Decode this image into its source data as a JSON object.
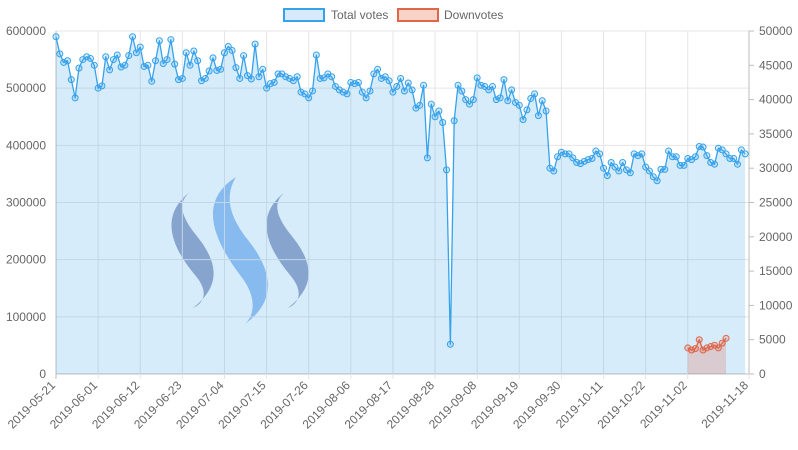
{
  "chart_data": {
    "type": "line",
    "legend": {
      "placement": "top-center",
      "items": [
        {
          "label": "Total votes",
          "stroke": "#36a2eb",
          "fill": "#d7eafb"
        },
        {
          "label": "Downvotes",
          "stroke": "#e0664a",
          "fill": "#f9d2c8"
        }
      ]
    },
    "x_ticks": [
      "2019-05-21",
      "2019-06-01",
      "2019-06-12",
      "2019-06-23",
      "2019-07-04",
      "2019-07-15",
      "2019-07-26",
      "2019-08-06",
      "2019-08-17",
      "2019-08-28",
      "2019-09-08",
      "2019-09-19",
      "2019-09-30",
      "2019-10-11",
      "2019-10-22",
      "2019-11-02",
      "2019-11-18"
    ],
    "x_tick_day_index": [
      0,
      11,
      22,
      33,
      44,
      55,
      66,
      77,
      88,
      99,
      110,
      121,
      132,
      143,
      154,
      165,
      181
    ],
    "x_start": "2019-05-21",
    "x_end": "2019-11-18",
    "y_left": {
      "min": 0,
      "max": 600000,
      "ticks": [
        "0",
        "100000",
        "200000",
        "300000",
        "400000",
        "500000",
        "600000"
      ]
    },
    "y_right": {
      "min": 0,
      "max": 50000,
      "ticks": [
        "0",
        "5000",
        "10000",
        "15000",
        "20000",
        "25000",
        "30000",
        "35000",
        "40000",
        "45000",
        "50000"
      ]
    },
    "grid": true,
    "series": [
      {
        "name": "Total votes",
        "axis": "left",
        "color": "#36a2eb",
        "fill": "rgba(54,162,235,0.2)",
        "values": [
          590000,
          560000,
          545000,
          548000,
          515000,
          483000,
          535000,
          550000,
          555000,
          552000,
          540000,
          500000,
          504000,
          555000,
          532000,
          550000,
          558000,
          537000,
          540000,
          557000,
          590000,
          562000,
          572000,
          538000,
          540000,
          512000,
          548000,
          583000,
          543000,
          550000,
          585000,
          542000,
          515000,
          517000,
          562000,
          540000,
          565000,
          548000,
          513000,
          517000,
          530000,
          553000,
          531000,
          533000,
          562000,
          573000,
          566000,
          536000,
          517000,
          557000,
          522000,
          516000,
          577000,
          520000,
          533000,
          500000,
          508000,
          510000,
          525000,
          525000,
          520000,
          517000,
          513000,
          520000,
          493000,
          490000,
          483000,
          495000,
          558000,
          517000,
          518000,
          525000,
          520000,
          503000,
          497000,
          493000,
          490000,
          510000,
          508000,
          510000,
          493000,
          483000,
          495000,
          525000,
          533000,
          517000,
          520000,
          513000,
          493000,
          503000,
          517000,
          495000,
          509000,
          497000,
          465000,
          470000,
          505000,
          378000,
          472000,
          450000,
          460000,
          440000,
          357000,
          52000,
          443000,
          505000,
          495000,
          480000,
          472000,
          480000,
          518000,
          505000,
          503000,
          497000,
          503000,
          480000,
          483000,
          515000,
          478000,
          497000,
          475000,
          470000,
          445000,
          462000,
          482000,
          490000,
          452000,
          478000,
          460000,
          360000,
          355000,
          380000,
          388000,
          385000,
          385000,
          378000,
          370000,
          368000,
          372000,
          375000,
          377000,
          390000,
          385000,
          360000,
          347000,
          370000,
          362000,
          355000,
          370000,
          357000,
          352000,
          385000,
          382000,
          385000,
          362000,
          355000,
          345000,
          338000,
          358000,
          358000,
          390000,
          380000,
          380000,
          365000,
          365000,
          377000,
          375000,
          380000,
          398000,
          397000,
          382000,
          370000,
          367000,
          395000,
          392000,
          385000,
          377000,
          377000,
          367000,
          392000,
          385000
        ]
      },
      {
        "name": "Downvotes",
        "axis": "right",
        "color": "#e0664a",
        "fill": "rgba(224,102,74,0.25)",
        "start_index": 165,
        "values": [
          3800,
          3500,
          3700,
          5000,
          3500,
          3800,
          4000,
          4200,
          3800,
          4500,
          5200
        ]
      }
    ]
  },
  "watermark": {
    "name": "steem-logo",
    "colors": [
      "#4b5f9e",
      "#4a90e2",
      "#4b5f9e"
    ]
  }
}
